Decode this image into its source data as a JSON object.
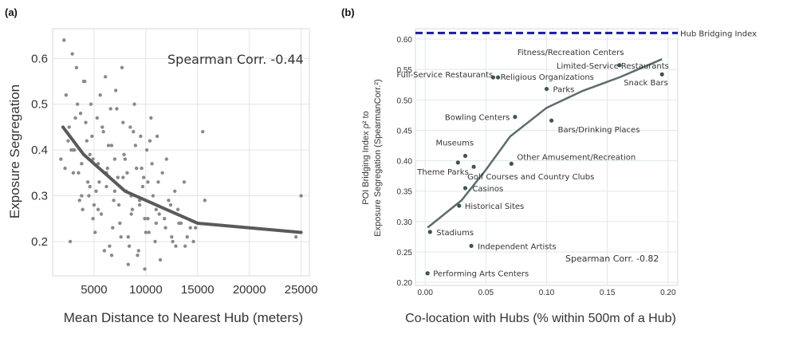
{
  "chart_data": [
    {
      "type": "scatter",
      "panel_label": "(a)",
      "xlabel": "Mean Distance to Nearest Hub (meters)",
      "ylabel": "Exposure Segregation",
      "xlim": [
        1000,
        25800
      ],
      "ylim": [
        0.125,
        0.665
      ],
      "xticks": [
        5000,
        10000,
        15000,
        20000,
        25000
      ],
      "xtick_labels": [
        "5000",
        "10000",
        "15000",
        "20000",
        "25000"
      ],
      "yticks": [
        0.2,
        0.3,
        0.4,
        0.5,
        0.6
      ],
      "ytick_labels": [
        "0.2",
        "0.3",
        "0.4",
        "0.5",
        "0.6"
      ],
      "annotation": "Spearman Corr. -0.44",
      "grid": true,
      "series": [
        {
          "name": "fit",
          "kind": "line",
          "x": [
            2000,
            4000,
            6000,
            8000,
            10000,
            12000,
            14000,
            15000,
            20000,
            25000
          ],
          "y": [
            0.45,
            0.39,
            0.35,
            0.31,
            0.29,
            0.27,
            0.25,
            0.24,
            0.23,
            0.22
          ]
        },
        {
          "name": "observations",
          "kind": "scatter",
          "x": [
            2100,
            2300,
            2600,
            2900,
            3100,
            3300,
            3500,
            3700,
            3900,
            4100,
            4300,
            4500,
            4700,
            4900,
            5100,
            5300,
            5500,
            5700,
            5900,
            6100,
            6300,
            6500,
            6700,
            6900,
            7100,
            7300,
            7500,
            7700,
            7900,
            8100,
            8300,
            8500,
            8700,
            8900,
            9100,
            9300,
            9500,
            9700,
            9900,
            10100,
            10300,
            10500,
            10700,
            10900,
            11100,
            11300,
            11600,
            11900,
            12200,
            12500,
            12800,
            13100,
            13400,
            13700,
            14000,
            14300,
            14600,
            15500,
            15700,
            24500,
            25000,
            2500,
            3000,
            3400,
            3800,
            4200,
            4600,
            5000,
            5400,
            5800,
            6200,
            6600,
            7000,
            7400,
            7800,
            8200,
            8600,
            9000,
            9400,
            9800,
            10200,
            10600,
            11000,
            1800,
            2700,
            3600,
            4400,
            5200,
            6000,
            6800,
            7600,
            8400,
            9200,
            10000,
            11400,
            12600,
            13800,
            14800,
            3200,
            4000,
            4800,
            5600,
            6400,
            7200,
            8000,
            8800,
            9600,
            10400,
            11200,
            12000,
            2200,
            3000,
            3800,
            4600,
            5400,
            6200,
            7000,
            7800,
            8600,
            9400,
            10200,
            11000,
            11800,
            12400,
            13200,
            2800,
            4900,
            6700,
            8300,
            9900,
            12900
          ],
          "y": [
            0.64,
            0.52,
            0.45,
            0.61,
            0.4,
            0.58,
            0.35,
            0.48,
            0.27,
            0.55,
            0.42,
            0.3,
            0.5,
            0.38,
            0.22,
            0.47,
            0.33,
            0.26,
            0.44,
            0.56,
            0.36,
            0.19,
            0.41,
            0.29,
            0.53,
            0.34,
            0.24,
            0.58,
            0.39,
            0.31,
            0.21,
            0.45,
            0.27,
            0.5,
            0.36,
            0.18,
            0.43,
            0.32,
            0.25,
            0.4,
            0.22,
            0.47,
            0.3,
            0.2,
            0.43,
            0.26,
            0.35,
            0.23,
            0.29,
            0.21,
            0.31,
            0.27,
            0.24,
            0.33,
            0.21,
            0.23,
            0.2,
            0.44,
            0.29,
            0.21,
            0.3,
            0.42,
            0.35,
            0.5,
            0.3,
            0.46,
            0.39,
            0.28,
            0.37,
            0.45,
            0.32,
            0.49,
            0.38,
            0.28,
            0.46,
            0.35,
            0.26,
            0.41,
            0.29,
            0.34,
            0.25,
            0.37,
            0.24,
            0.38,
            0.2,
            0.29,
            0.33,
            0.31,
            0.18,
            0.23,
            0.21,
            0.19,
            0.17,
            0.22,
            0.16,
            0.2,
            0.19,
            0.23,
            0.47,
            0.55,
            0.43,
            0.52,
            0.41,
            0.49,
            0.38,
            0.44,
            0.36,
            0.42,
            0.33,
            0.38,
            0.36,
            0.4,
            0.37,
            0.32,
            0.27,
            0.35,
            0.31,
            0.34,
            0.3,
            0.28,
            0.33,
            0.27,
            0.25,
            0.28,
            0.24,
            0.4,
            0.25,
            0.17,
            0.15,
            0.14,
            0.19
          ]
        }
      ]
    },
    {
      "type": "scatter",
      "panel_label": "(b)",
      "xlabel": "Co-location with Hubs (% within 500m of a Hub)",
      "ylabel_line1": "POI Bridging Index ρ² to",
      "ylabel_line2": "Exposure Segregation (SpearmanCorr.²)",
      "xlim": [
        -0.008,
        0.208
      ],
      "ylim": [
        0.195,
        0.617
      ],
      "xticks": [
        0.0,
        0.05,
        0.1,
        0.15,
        0.2
      ],
      "xtick_labels": [
        "0.00",
        "0.05",
        "0.10",
        "0.15",
        "0.20"
      ],
      "yticks": [
        0.2,
        0.25,
        0.3,
        0.35,
        0.4,
        0.45,
        0.5,
        0.55,
        0.6
      ],
      "ytick_labels": [
        "0.20",
        "0.25",
        "0.30",
        "0.35",
        "0.40",
        "0.45",
        "0.50",
        "0.55",
        "0.60"
      ],
      "annotation": "Spearman Corr. -0.82",
      "hline": {
        "y": 0.61,
        "label": "Hub Bridging Index",
        "color": "#1a1aa6"
      },
      "grid": true,
      "fit": {
        "x": [
          0.002,
          0.03,
          0.05,
          0.07,
          0.1,
          0.13,
          0.16,
          0.195
        ],
        "y": [
          0.29,
          0.335,
          0.385,
          0.44,
          0.487,
          0.515,
          0.537,
          0.567
        ]
      },
      "points": [
        {
          "label": "Fitness/Recreation Centers",
          "x": 0.16,
          "y": 0.557
        },
        {
          "label": "Snack Bars",
          "x": 0.195,
          "y": 0.542
        },
        {
          "label": "Limited-Service Restaurants",
          "x": 0.16,
          "y": 0.557
        },
        {
          "label": "Full-Service Restaurants",
          "x": 0.056,
          "y": 0.537
        },
        {
          "label": "Religious Organizations",
          "x": 0.06,
          "y": 0.537
        },
        {
          "label": "Parks",
          "x": 0.1,
          "y": 0.518
        },
        {
          "label": "Bowling Centers",
          "x": 0.074,
          "y": 0.472
        },
        {
          "label": "Bars/Drinking Places",
          "x": 0.104,
          "y": 0.466
        },
        {
          "label": "Museums",
          "x": 0.033,
          "y": 0.408
        },
        {
          "label": "Theme Parks",
          "x": 0.027,
          "y": 0.397
        },
        {
          "label": "Other Amusement/Recreation",
          "x": 0.071,
          "y": 0.395
        },
        {
          "label": "Golf Courses and Country Clubs",
          "x": 0.04,
          "y": 0.39
        },
        {
          "label": "Casinos",
          "x": 0.033,
          "y": 0.355
        },
        {
          "label": "Historical Sites",
          "x": 0.028,
          "y": 0.326
        },
        {
          "label": "Stadiums",
          "x": 0.004,
          "y": 0.283
        },
        {
          "label": "Independent Artists",
          "x": 0.038,
          "y": 0.26
        },
        {
          "label": "Performing Arts Centers",
          "x": 0.002,
          "y": 0.215
        }
      ]
    }
  ]
}
